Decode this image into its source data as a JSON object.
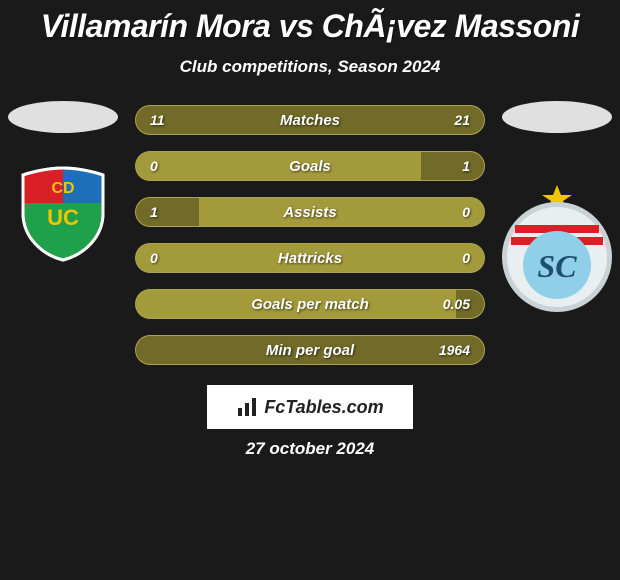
{
  "title": "Villamarín Mora vs ChÃ¡vez Massoni",
  "subtitle": "Club competitions, Season 2024",
  "footer_brand": "FcTables.com",
  "footer_date": "27 october 2024",
  "colors": {
    "background": "#1a1a1a",
    "bar_track": "#a39a3c",
    "bar_fill": "#716a28",
    "oval_left": "#e0e0e0",
    "oval_right": "#e0e0e0",
    "text": "#ffffff"
  },
  "stats": [
    {
      "label": "Matches",
      "left_val": "11",
      "right_val": "21",
      "left_pct": 34,
      "right_pct": 66
    },
    {
      "label": "Goals",
      "left_val": "0",
      "right_val": "1",
      "left_pct": 0,
      "right_pct": 18
    },
    {
      "label": "Assists",
      "left_val": "1",
      "right_val": "0",
      "left_pct": 18,
      "right_pct": 0
    },
    {
      "label": "Hattricks",
      "left_val": "0",
      "right_val": "0",
      "left_pct": 0,
      "right_pct": 0
    },
    {
      "label": "Goals per match",
      "left_val": "",
      "right_val": "0.05",
      "left_pct": 0,
      "right_pct": 8
    },
    {
      "label": "Min per goal",
      "left_val": "",
      "right_val": "1964",
      "left_pct": 0,
      "right_pct": 100
    }
  ],
  "left_crest": {
    "shield_stroke": "#ffffff",
    "shield_fill": "#ffffff",
    "top_left": "#d92027",
    "top_right": "#1e6fb7",
    "bottom": "#1fa04a",
    "letters_fill": "#f3c400",
    "letters": "CD UC"
  },
  "right_crest": {
    "circle_fill": "#e9eef0",
    "circle_stroke": "#c9d2d6",
    "stripes": "#d92027",
    "sc_circle": "#8fd0e8",
    "sc_text": "SC",
    "star_fill": "#f3c400"
  }
}
